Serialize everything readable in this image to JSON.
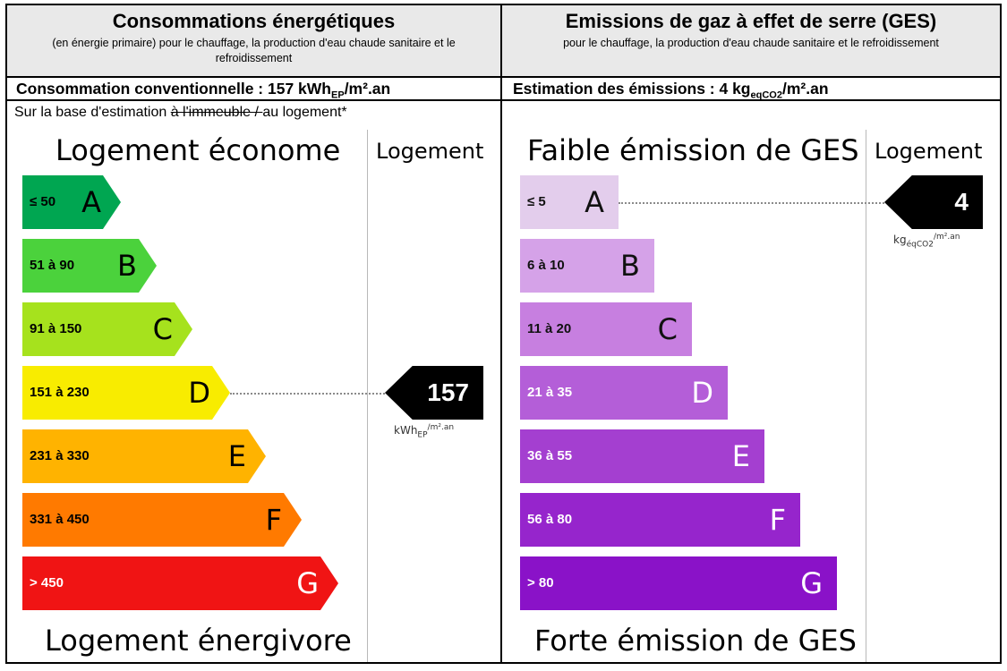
{
  "energy": {
    "title": "Consommations énergétiques",
    "subtitle": "(en énergie primaire) pour le chauffage, la production d'eau chaude sanitaire et le refroidissement",
    "summary_prefix": "Consommation conventionnelle : 157 kWh",
    "summary_sub": "EP",
    "summary_suffix": "/m².an",
    "basis_prefix": "Sur la base d'estimation ",
    "basis_struck": "à l'immeuble / ",
    "basis_suffix": "au logement*",
    "top_label": "Logement économe",
    "bottom_label": "Logement énergivore",
    "column_label": "Logement",
    "value": "157",
    "unit_main": "kWh",
    "unit_sub": "EP",
    "unit_sup": "/m².an",
    "classes": [
      {
        "letter": "A",
        "range": "≤ 50",
        "color": "#00a651"
      },
      {
        "letter": "B",
        "range": "51 à 90",
        "color": "#4bd23c"
      },
      {
        "letter": "C",
        "range": "91 à 150",
        "color": "#a6e21d"
      },
      {
        "letter": "D",
        "range": "151 à 230",
        "color": "#f8ec00"
      },
      {
        "letter": "E",
        "range": "231 à 330",
        "color": "#ffb300"
      },
      {
        "letter": "F",
        "range": "331 à 450",
        "color": "#ff7a00"
      },
      {
        "letter": "G",
        "range": "> 450",
        "color": "#f01414"
      }
    ],
    "current_class": "D"
  },
  "ges": {
    "title": "Emissions de gaz à effet de serre (GES)",
    "subtitle": "pour le chauffage, la production d'eau chaude sanitaire et le refroidissement",
    "summary_prefix": "Estimation des émissions : 4 kg",
    "summary_sub": "eqCO2",
    "summary_suffix": "/m².an",
    "top_label": "Faible émission de GES",
    "bottom_label": "Forte émission de GES",
    "column_label": "Logement",
    "value": "4",
    "unit_main": "kg",
    "unit_sub": "éqCO2",
    "unit_sup": "/m².an",
    "classes": [
      {
        "letter": "A",
        "range": "≤ 5",
        "color": "#e3cdec"
      },
      {
        "letter": "B",
        "range": "6 à 10",
        "color": "#d5a2e8"
      },
      {
        "letter": "C",
        "range": "11 à 20",
        "color": "#c77fe0"
      },
      {
        "letter": "D",
        "range": "21 à 35",
        "color": "#b45ed8"
      },
      {
        "letter": "E",
        "range": "36 à 55",
        "color": "#a43fd0"
      },
      {
        "letter": "F",
        "range": "56 à 80",
        "color": "#9625cc"
      },
      {
        "letter": "G",
        "range": "> 80",
        "color": "#8a12c8"
      }
    ],
    "current_class": "A"
  }
}
